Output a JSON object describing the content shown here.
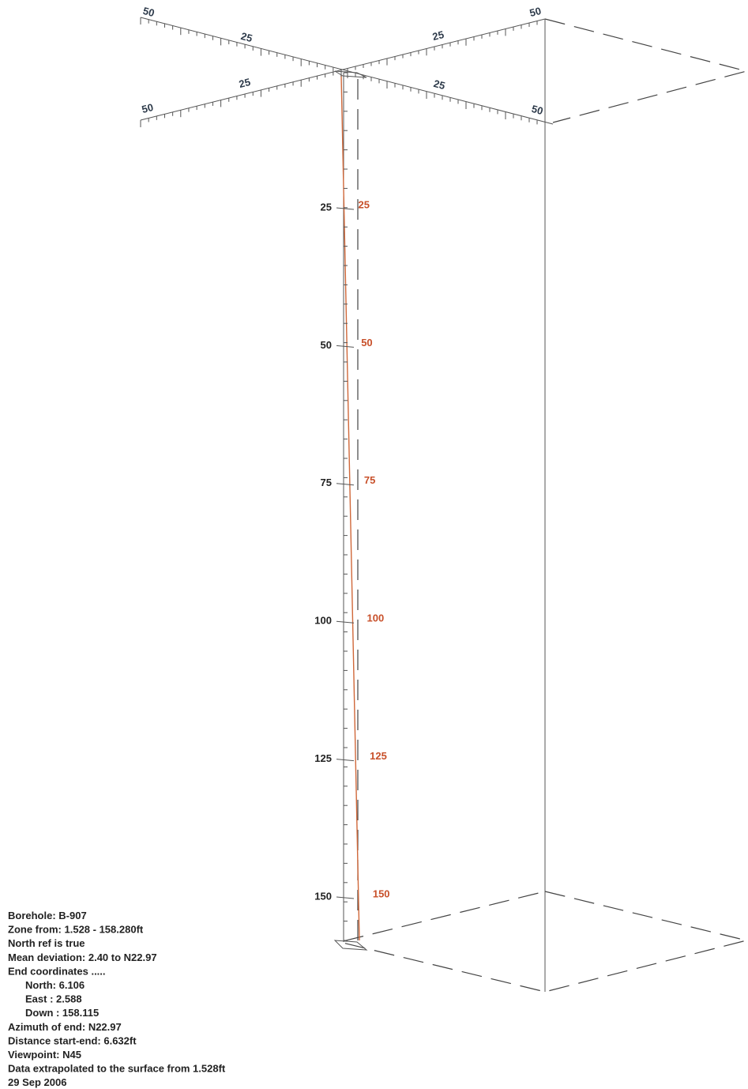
{
  "top_axes": {
    "axis_a": [
      "50",
      "25",
      "25",
      "50"
    ],
    "axis_b": [
      "50",
      "25",
      "25",
      "50"
    ]
  },
  "depth_labels": [
    "25",
    "50",
    "75",
    "100",
    "125",
    "150"
  ],
  "borehole_labels": [
    "25",
    "50",
    "75",
    "100",
    "125",
    "150"
  ],
  "info": [
    "Borehole: B-907",
    "Zone from: 1.528 - 158.280ft",
    "North ref is true",
    "Mean deviation: 2.40 to N22.97",
    "End coordinates .....",
    "North: 6.106",
    "East : 2.588",
    "Down : 158.115",
    "Azimuth of end: N22.97",
    "Distance start-end: 6.632ft",
    "Viewpoint: N45",
    "Data extrapolated to the surface from 1.528ft",
    "29 Sep 2006"
  ]
}
